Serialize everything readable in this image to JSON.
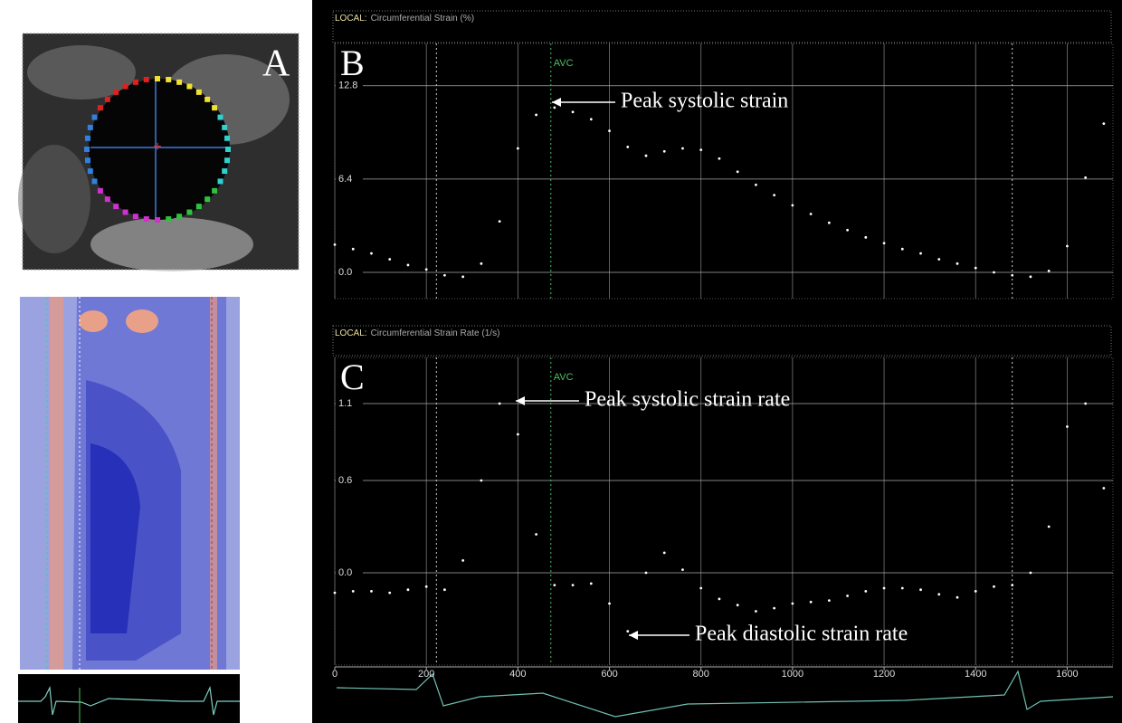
{
  "panel_a": {
    "label": "A"
  },
  "chart_data": [
    {
      "type": "scatter",
      "panel_label": "B",
      "header_prefix": "LOCAL:",
      "title": "Circumferential Strain (%)",
      "x": [
        0,
        40,
        80,
        120,
        160,
        200,
        240,
        280,
        320,
        360,
        400,
        440,
        480,
        520,
        560,
        600,
        640,
        680,
        720,
        760,
        800,
        840,
        880,
        920,
        960,
        1000,
        1040,
        1080,
        1120,
        1160,
        1200,
        1240,
        1280,
        1320,
        1360,
        1400,
        1440,
        1480,
        1520,
        1560,
        1600,
        1640,
        1680
      ],
      "values": [
        1.9,
        1.6,
        1.3,
        0.9,
        0.5,
        0.2,
        -0.2,
        -0.3,
        0.6,
        3.5,
        8.5,
        10.8,
        11.3,
        11.0,
        10.5,
        9.7,
        8.6,
        8.0,
        8.3,
        8.5,
        8.4,
        7.8,
        6.9,
        6.0,
        5.3,
        4.6,
        4.0,
        3.4,
        2.9,
        2.4,
        2.0,
        1.6,
        1.3,
        0.9,
        0.6,
        0.3,
        0.0,
        -0.2,
        -0.3,
        0.1,
        1.8,
        6.5,
        10.2
      ],
      "color": "#ffffff",
      "xlim": [
        0,
        1700
      ],
      "ylim": [
        -1.8,
        15.7
      ],
      "yticks": [
        {
          "value": 0,
          "label": "0.0"
        },
        6.4,
        12.8
      ],
      "xticks": [
        0,
        200,
        400,
        600,
        800,
        1000,
        1200,
        1400,
        1600
      ],
      "grid": true,
      "event_lines": [
        222,
        1480
      ],
      "avc": {
        "label": "AVC",
        "value": 472
      },
      "annotations": [
        {
          "text": "Peak systolic strain"
        }
      ]
    },
    {
      "type": "scatter",
      "panel_label": "C",
      "header_prefix": "LOCAL:",
      "title": "Circumferential Strain Rate (1/s)",
      "x": [
        0,
        40,
        80,
        120,
        160,
        200,
        240,
        280,
        320,
        360,
        400,
        440,
        480,
        520,
        560,
        600,
        640,
        680,
        720,
        760,
        800,
        840,
        880,
        920,
        960,
        1000,
        1040,
        1080,
        1120,
        1160,
        1200,
        1240,
        1280,
        1320,
        1360,
        1400,
        1440,
        1480,
        1520,
        1560,
        1600,
        1640,
        1680
      ],
      "values": [
        -0.13,
        -0.12,
        -0.12,
        -0.13,
        -0.11,
        -0.09,
        -0.11,
        0.08,
        0.6,
        1.1,
        0.9,
        0.25,
        -0.08,
        -0.08,
        -0.07,
        -0.2,
        -0.38,
        0.0,
        0.13,
        0.02,
        -0.1,
        -0.17,
        -0.21,
        -0.25,
        -0.23,
        -0.2,
        -0.19,
        -0.18,
        -0.15,
        -0.12,
        -0.1,
        -0.1,
        -0.11,
        -0.14,
        -0.16,
        -0.12,
        -0.09,
        -0.08,
        0.0,
        0.3,
        0.95,
        1.1,
        0.55
      ],
      "color": "#ffffff",
      "xlim": [
        0,
        1700
      ],
      "ylim": [
        -0.6,
        1.4
      ],
      "yticks": [
        {
          "value": 0,
          "label": "0.0"
        },
        0.6,
        1.1
      ],
      "xticks": [
        0,
        200,
        400,
        600,
        800,
        1000,
        1200,
        1400,
        1600
      ],
      "grid": true,
      "event_lines": [
        222,
        1480
      ],
      "avc": {
        "label": "AVC",
        "value": 472
      },
      "annotations": [
        {
          "text": "Peak systolic strain rate"
        },
        {
          "text": "Peak diastolic strain rate"
        }
      ]
    }
  ]
}
